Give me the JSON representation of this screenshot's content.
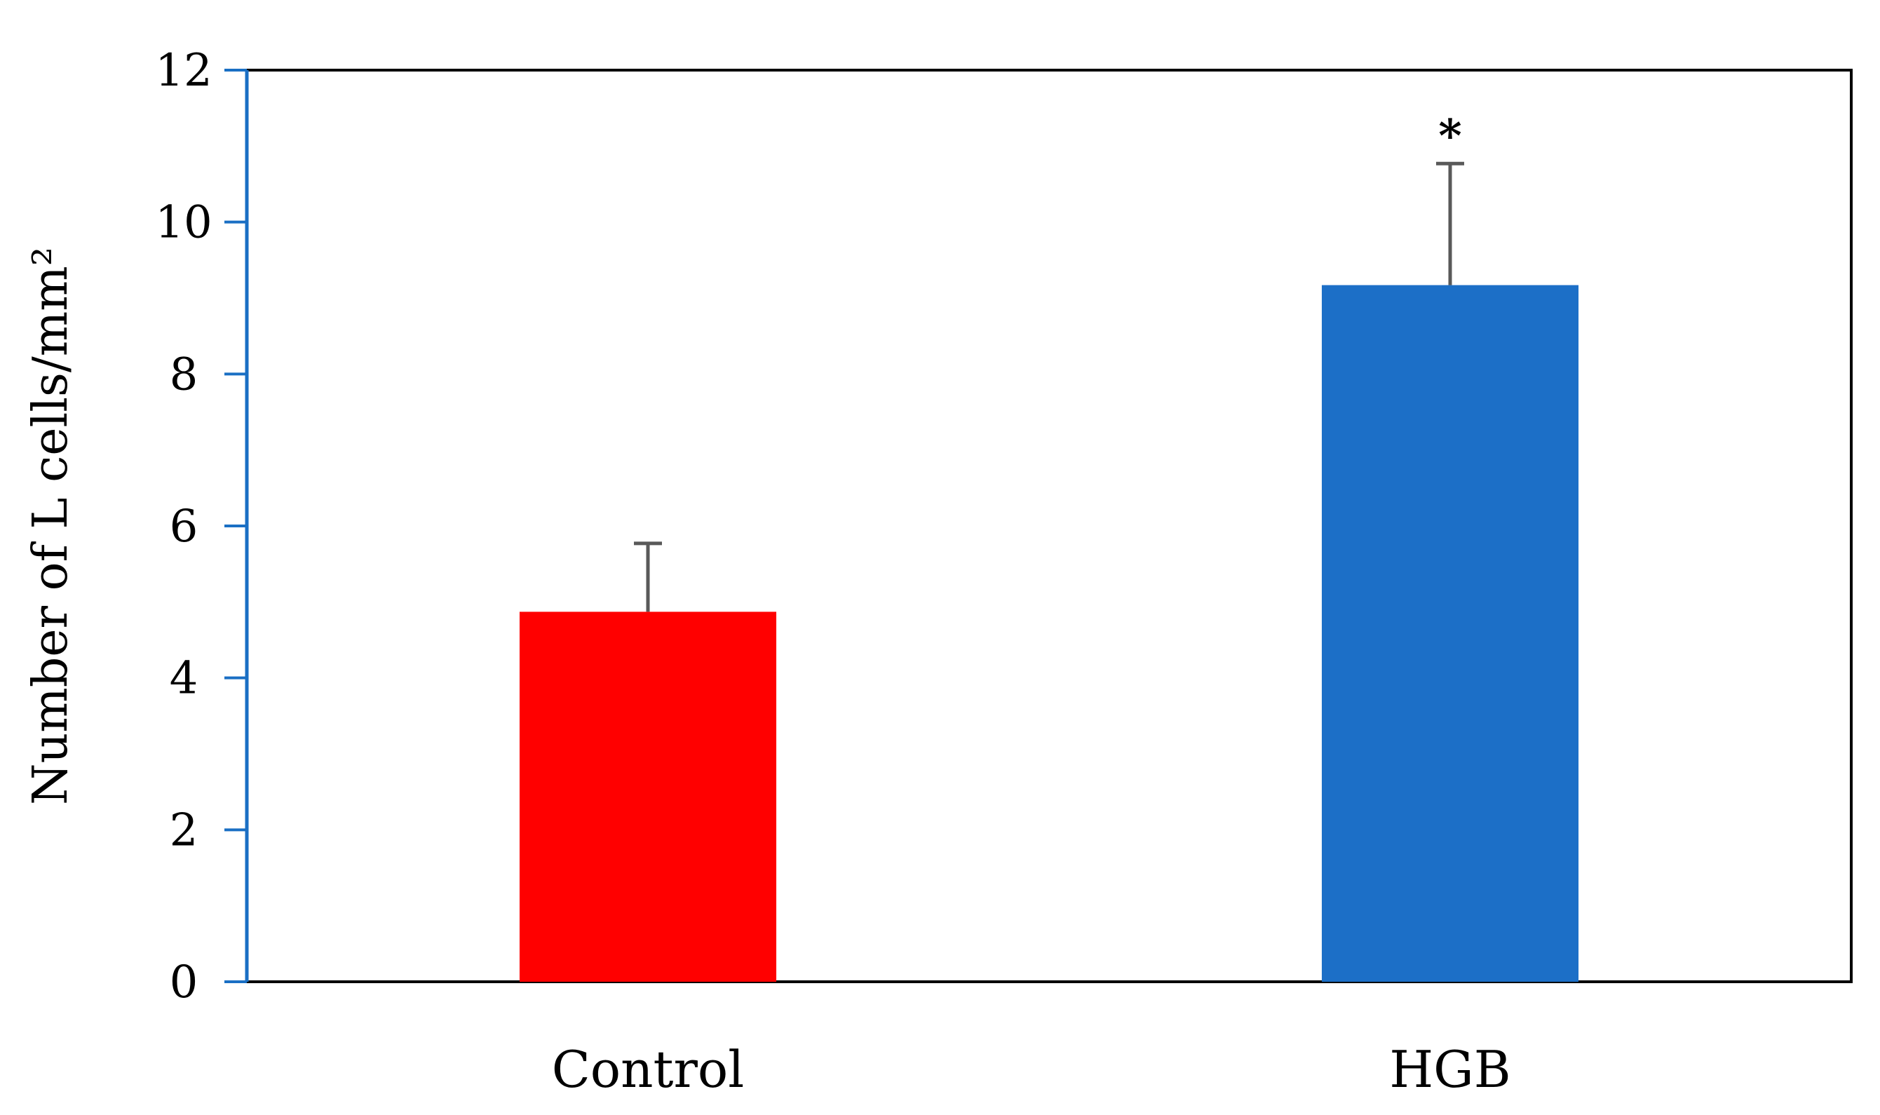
{
  "chart_data": {
    "type": "bar",
    "title": "",
    "xlabel": "",
    "ylabel": "Number of L cells/mm²",
    "ylim": [
      0,
      12
    ],
    "yticks": [
      0,
      2,
      4,
      6,
      8,
      10,
      12
    ],
    "categories": [
      "Control",
      "HGB"
    ],
    "values": [
      4.87,
      9.17
    ],
    "errors": [
      0.9,
      1.6
    ],
    "colors": [
      "#ff0000",
      "#1c6fc7"
    ],
    "annotations": [
      "",
      "*"
    ],
    "axis_color": "#1a6fc4",
    "errorbar_color": "#595959"
  }
}
